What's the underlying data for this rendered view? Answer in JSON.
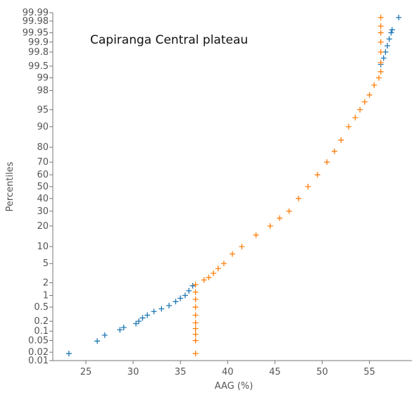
{
  "chart_data": {
    "type": "scatter",
    "title": "Capiranga Central plateau",
    "xlabel": "AAG (%)",
    "ylabel": "Percentiles",
    "xlim": [
      21.5,
      59.5
    ],
    "ylim": [
      0.01,
      99.99
    ],
    "y_scale": "probability",
    "x_ticks": [
      25,
      30,
      35,
      40,
      45,
      50,
      55
    ],
    "y_ticks": [
      0.01,
      0.02,
      0.05,
      0.1,
      0.2,
      0.5,
      1,
      2,
      5,
      10,
      20,
      30,
      40,
      50,
      60,
      70,
      80,
      90,
      95,
      98,
      99,
      99.5,
      99.8,
      99.9,
      99.95,
      99.98,
      99.99
    ],
    "y_tick_labels": [
      "0.01",
      "0.02",
      "0.05",
      "0.1",
      "0.2",
      "0.5",
      "1",
      "2",
      "5",
      "10",
      "20",
      "30",
      "40",
      "50",
      "60",
      "70",
      "80",
      "90",
      "95",
      "98",
      "99",
      "99.5",
      "99.8",
      "99.9",
      "99.95",
      "99.98",
      "99.99"
    ],
    "grid": false,
    "legend": "none",
    "marker": "+",
    "series": [
      {
        "color": "#1f77b4",
        "points": [
          [
            23.2,
            0.018
          ],
          [
            26.2,
            0.048
          ],
          [
            27.0,
            0.075
          ],
          [
            28.6,
            0.11
          ],
          [
            29.0,
            0.13
          ],
          [
            30.3,
            0.17
          ],
          [
            30.6,
            0.2
          ],
          [
            31.0,
            0.25
          ],
          [
            31.5,
            0.3
          ],
          [
            32.2,
            0.38
          ],
          [
            33.0,
            0.45
          ],
          [
            33.8,
            0.55
          ],
          [
            34.5,
            0.7
          ],
          [
            35.0,
            0.85
          ],
          [
            35.5,
            1.0
          ],
          [
            35.9,
            1.3
          ],
          [
            36.3,
            1.7
          ],
          [
            56.2,
            99.55
          ],
          [
            56.5,
            99.7
          ],
          [
            56.7,
            99.8
          ],
          [
            56.9,
            99.87
          ],
          [
            57.1,
            99.92
          ],
          [
            57.3,
            99.95
          ],
          [
            57.4,
            99.96
          ],
          [
            58.1,
            99.985
          ]
        ]
      },
      {
        "color": "#ff7f0e",
        "points": [
          [
            36.6,
            0.018
          ],
          [
            36.6,
            0.05
          ],
          [
            36.6,
            0.08
          ],
          [
            36.6,
            0.12
          ],
          [
            36.6,
            0.18
          ],
          [
            36.6,
            0.3
          ],
          [
            36.6,
            0.5
          ],
          [
            36.6,
            0.8
          ],
          [
            36.6,
            1.2
          ],
          [
            36.6,
            1.8
          ],
          [
            37.5,
            2.3
          ],
          [
            38.0,
            2.6
          ],
          [
            38.5,
            3.2
          ],
          [
            39.0,
            4.0
          ],
          [
            39.6,
            5.0
          ],
          [
            40.5,
            7.5
          ],
          [
            41.5,
            10.0
          ],
          [
            43.0,
            15.0
          ],
          [
            44.5,
            20.0
          ],
          [
            45.5,
            25.0
          ],
          [
            46.5,
            30.0
          ],
          [
            47.5,
            40.0
          ],
          [
            48.5,
            50.0
          ],
          [
            49.5,
            60.0
          ],
          [
            50.5,
            70.0
          ],
          [
            51.3,
            77.5
          ],
          [
            52.0,
            84.0
          ],
          [
            52.8,
            90.0
          ],
          [
            53.5,
            93.0
          ],
          [
            54.0,
            95.0
          ],
          [
            54.5,
            96.5
          ],
          [
            55.0,
            97.5
          ],
          [
            55.5,
            98.5
          ],
          [
            56.0,
            99.0
          ],
          [
            56.2,
            99.3
          ],
          [
            56.2,
            99.6
          ],
          [
            56.2,
            99.8
          ],
          [
            56.2,
            99.9
          ],
          [
            56.2,
            99.95
          ],
          [
            56.2,
            99.97
          ],
          [
            56.2,
            99.985
          ]
        ]
      }
    ]
  }
}
